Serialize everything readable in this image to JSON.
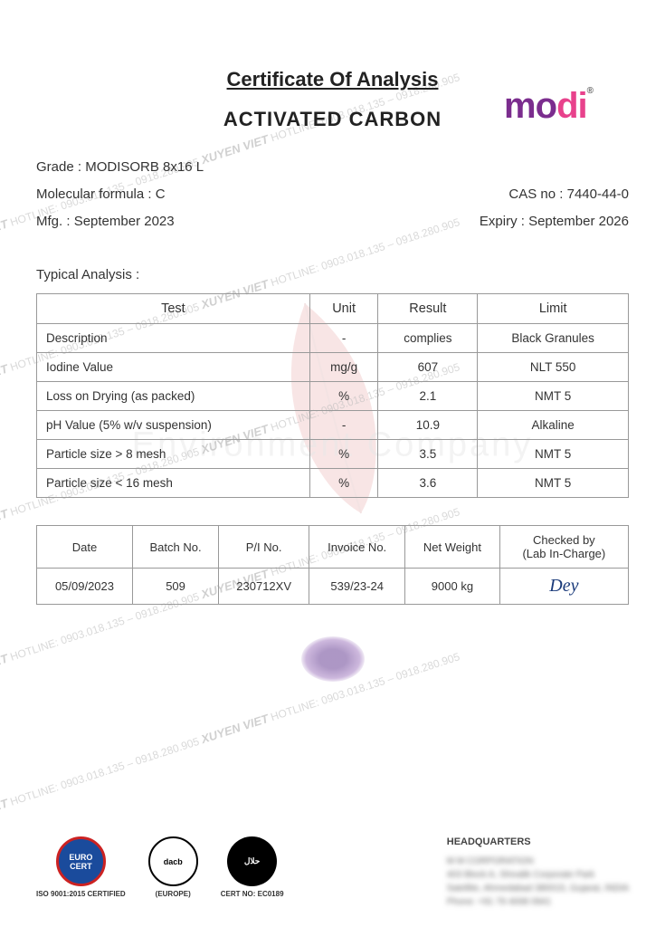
{
  "logo": {
    "text": "modi",
    "reg": "®"
  },
  "titles": {
    "certificate": "Certificate Of Analysis",
    "product": "ACTIVATED CARBON"
  },
  "meta": {
    "grade_label": "Grade : ",
    "grade_value": "MODISORB 8x16 L",
    "formula_label": "Molecular formula : ",
    "formula_value": "C",
    "cas_label": "CAS no : ",
    "cas_value": "7440-44-0",
    "mfg_label": "Mfg. : ",
    "mfg_value": "September 2023",
    "expiry_label": "Expiry : ",
    "expiry_value": "September 2026"
  },
  "typical_label": "Typical Analysis :",
  "analysis_table": {
    "headers": [
      "Test",
      "Unit",
      "Result",
      "Limit"
    ],
    "rows": [
      {
        "test": "Description",
        "unit": "-",
        "result": "complies",
        "limit": "Black Granules"
      },
      {
        "test": "Iodine Value",
        "unit": "mg/g",
        "result": "607",
        "limit": "NLT 550"
      },
      {
        "test": "Loss on Drying (as packed)",
        "unit": "%",
        "result": "2.1",
        "limit": "NMT 5"
      },
      {
        "test": "pH Value (5% w/v suspension)",
        "unit": "-",
        "result": "10.9",
        "limit": "Alkaline"
      },
      {
        "test": "Particle size > 8 mesh",
        "unit": "%",
        "result": "3.5",
        "limit": "NMT 5"
      },
      {
        "test": "Particle size < 16 mesh",
        "unit": "%",
        "result": "3.6",
        "limit": "NMT 5"
      }
    ]
  },
  "batch_table": {
    "headers": [
      "Date",
      "Batch No.",
      "P/I No.",
      "Invoice No.",
      "Net Weight",
      "Checked by\n(Lab In-Charge)"
    ],
    "row": {
      "date": "05/09/2023",
      "batch": "509",
      "pi": "230712XV",
      "invoice": "539/23-24",
      "weight": "9000 kg",
      "signature": "Dey"
    }
  },
  "certs": {
    "euro": "EURO CERT",
    "euro_sub": "ISO 9001:2015 CERTIFIED",
    "dacb": "dacb",
    "dacb_sub": "(EUROPE)",
    "halal": "حلال",
    "halal_sub": "CERT NO: EC0189"
  },
  "hq": {
    "title": "HEADQUARTERS",
    "line1": "M M CORPORATION",
    "line2": "403 Block A, Shivalik Corporate Park",
    "line3": "Satellite, Ahmedabad 380015, Gujarat, INDIA",
    "line4": "Phone: +91 79 4008 0941"
  },
  "watermark": {
    "brand": "XUYEN VIET",
    "hotline": " HOTLINE: 0903.018.135 – 0918.280.905 "
  },
  "bg_watermark": "Environment Company"
}
